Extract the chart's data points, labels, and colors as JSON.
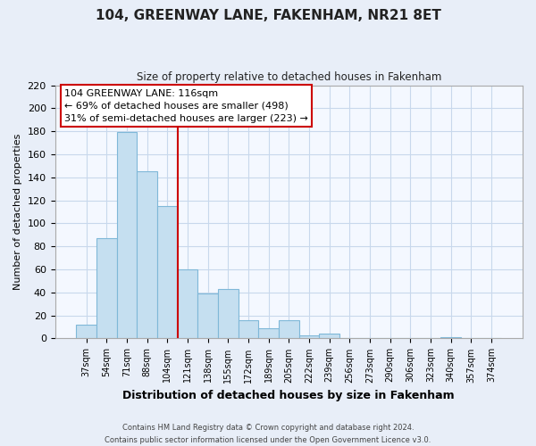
{
  "title": "104, GREENWAY LANE, FAKENHAM, NR21 8ET",
  "subtitle": "Size of property relative to detached houses in Fakenham",
  "xlabel": "Distribution of detached houses by size in Fakenham",
  "ylabel": "Number of detached properties",
  "bar_values": [
    12,
    87,
    179,
    145,
    115,
    60,
    39,
    43,
    16,
    9,
    16,
    3,
    4,
    0,
    0,
    0,
    0,
    0,
    1,
    0,
    0
  ],
  "bar_labels": [
    "37sqm",
    "54sqm",
    "71sqm",
    "88sqm",
    "104sqm",
    "121sqm",
    "138sqm",
    "155sqm",
    "172sqm",
    "189sqm",
    "205sqm",
    "222sqm",
    "239sqm",
    "256sqm",
    "273sqm",
    "290sqm",
    "306sqm",
    "323sqm",
    "340sqm",
    "357sqm",
    "374sqm"
  ],
  "bar_color": "#c5dff0",
  "bar_edge_color": "#7fb8d8",
  "vline_color": "#cc0000",
  "annotation_title": "104 GREENWAY LANE: 116sqm",
  "annotation_line1": "← 69% of detached houses are smaller (498)",
  "annotation_line2": "31% of semi-detached houses are larger (223) →",
  "annotation_box_color": "#ffffff",
  "annotation_box_edge": "#cc0000",
  "ylim": [
    0,
    220
  ],
  "yticks": [
    0,
    20,
    40,
    60,
    80,
    100,
    120,
    140,
    160,
    180,
    200,
    220
  ],
  "footer1": "Contains HM Land Registry data © Crown copyright and database right 2024.",
  "footer2": "Contains public sector information licensed under the Open Government Licence v3.0.",
  "bg_color": "#e8eef8",
  "plot_bg_color": "#f4f8ff",
  "grid_color": "#c8d8ec"
}
